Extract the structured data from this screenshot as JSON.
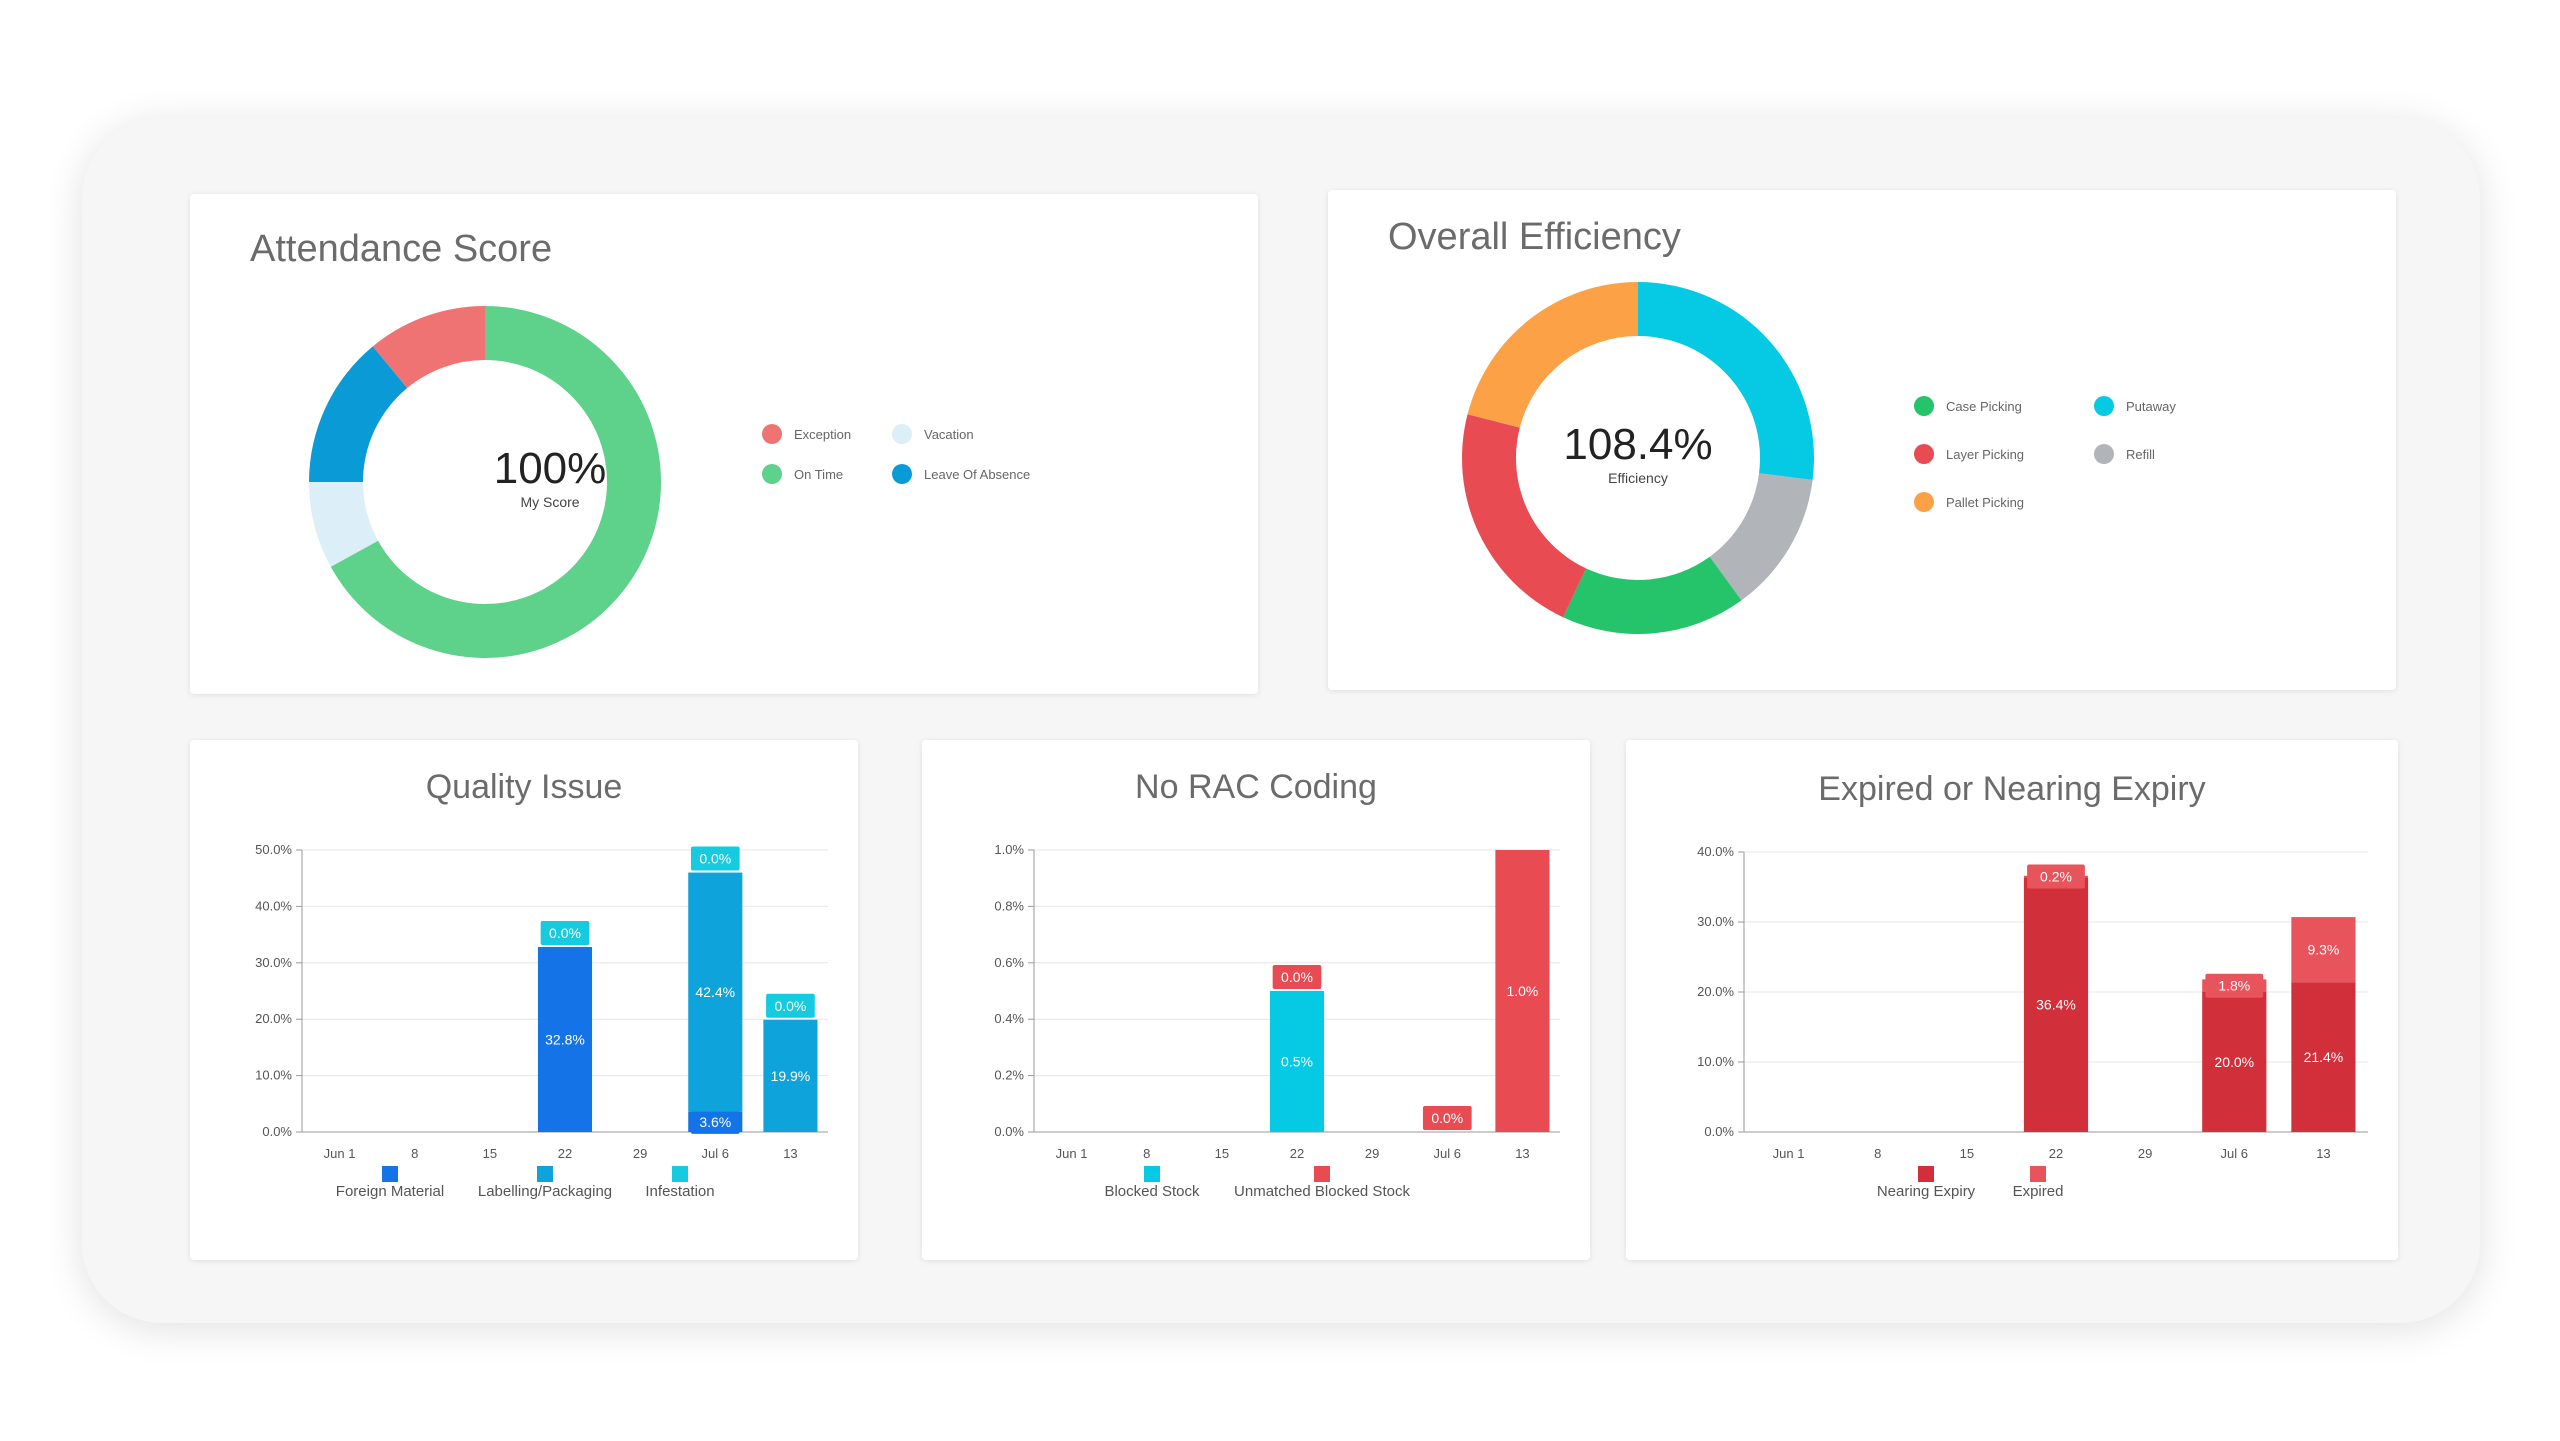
{
  "attendance": {
    "title": "Attendance Score",
    "center_value": "100%",
    "center_label": "My Score",
    "legend": [
      {
        "label": "Exception",
        "color": "#f07373"
      },
      {
        "label": "Vacation",
        "color": "#dceef7"
      },
      {
        "label": "On Time",
        "color": "#5ed18a"
      },
      {
        "label": "Leave Of Absence",
        "color": "#0a9bd7"
      }
    ]
  },
  "efficiency": {
    "title": "Overall Efficiency",
    "center_value": "108.4%",
    "center_label": "Efficiency",
    "legend": [
      {
        "label": "Case Picking",
        "color": "#25c46a"
      },
      {
        "label": "Putaway",
        "color": "#06c9e4"
      },
      {
        "label": "Layer Picking",
        "color": "#e84b52"
      },
      {
        "label": "Refill",
        "color": "#b1b4b9"
      },
      {
        "label": "Pallet Picking",
        "color": "#fca145"
      }
    ]
  },
  "chart_data": [
    {
      "type": "pie",
      "title": "Attendance Score",
      "labels": [
        "On Time",
        "Vacation",
        "Leave Of Absence",
        "Exception"
      ],
      "values": [
        67,
        8,
        14,
        11
      ],
      "colors": [
        "#5ed18a",
        "#dceef7",
        "#0a9bd7",
        "#f07373"
      ]
    },
    {
      "type": "pie",
      "title": "Overall Efficiency",
      "labels": [
        "Putaway",
        "Refill",
        "Case Picking",
        "Layer Picking",
        "Pallet Picking"
      ],
      "values": [
        27,
        13,
        17,
        22,
        21
      ],
      "colors": [
        "#06c9e4",
        "#b1b4b9",
        "#25c46a",
        "#e84b52",
        "#fca145"
      ]
    },
    {
      "type": "bar",
      "title": "Quality Issue",
      "categories": [
        "Jun 1",
        "8",
        "15",
        "22",
        "29",
        "Jul 6",
        "13"
      ],
      "ylim": [
        0,
        50
      ],
      "yticks": [
        "0.0%",
        "10.0%",
        "20.0%",
        "30.0%",
        "40.0%",
        "50.0%"
      ],
      "stacked": true,
      "series": [
        {
          "name": "Foreign Material",
          "color": "#1473e6",
          "values": [
            0,
            0,
            0,
            32.8,
            0,
            3.6,
            0
          ],
          "labels": [
            "",
            "",
            "",
            "32.8%",
            "",
            "3.6%",
            "0.0%"
          ]
        },
        {
          "name": "Labelling/Packaging",
          "color": "#0ea3da",
          "values": [
            0,
            0,
            0,
            0,
            0,
            42.4,
            19.9
          ],
          "labels": [
            "",
            "",
            "",
            "",
            "",
            "42.4%",
            "19.9%"
          ]
        },
        {
          "name": "Infestation",
          "color": "#16cbe0",
          "values": [
            0,
            0,
            0,
            0,
            0,
            0,
            0
          ],
          "labels": [
            "",
            "",
            "",
            "0.0%",
            "",
            "0.0%",
            "0.0%"
          ]
        }
      ]
    },
    {
      "type": "bar",
      "title": "No RAC Coding",
      "categories": [
        "Jun 1",
        "8",
        "15",
        "22",
        "29",
        "Jul 6",
        "13"
      ],
      "ylim": [
        0,
        1
      ],
      "yticks": [
        "0.0%",
        "0.2%",
        "0.4%",
        "0.6%",
        "0.8%",
        "1.0%"
      ],
      "stacked": true,
      "series": [
        {
          "name": "Blocked Stock",
          "color": "#06c9e4",
          "values": [
            0,
            0,
            0,
            0.5,
            0,
            0,
            0
          ],
          "labels": [
            "",
            "",
            "",
            "0.5%",
            "",
            "",
            "0.0%"
          ]
        },
        {
          "name": "Unmatched Blocked Stock",
          "color": "#e84b52",
          "values": [
            0,
            0,
            0,
            0,
            0,
            0,
            1.0
          ],
          "labels": [
            "",
            "",
            "",
            "0.0%",
            "",
            "0.0%",
            "1.0%"
          ]
        }
      ]
    },
    {
      "type": "bar",
      "title": "Expired or Nearing Expiry",
      "categories": [
        "Jun 1",
        "8",
        "15",
        "22",
        "29",
        "Jul 6",
        "13"
      ],
      "ylim": [
        0,
        40
      ],
      "yticks": [
        "0.0%",
        "10.0%",
        "20.0%",
        "30.0%",
        "40.0%"
      ],
      "stacked": true,
      "series": [
        {
          "name": "Nearing Expiry",
          "color": "#d12f3a",
          "values": [
            0,
            0,
            0,
            36.4,
            0,
            20.0,
            21.4
          ],
          "labels": [
            "",
            "",
            "",
            "36.4%",
            "",
            "20.0%",
            "21.4%"
          ]
        },
        {
          "name": "Expired",
          "color": "#e8545b",
          "values": [
            0,
            0,
            0,
            0.2,
            0,
            1.8,
            9.3
          ],
          "labels": [
            "",
            "",
            "",
            "0.2%",
            "",
            "1.8%",
            "9.3%"
          ]
        }
      ]
    }
  ]
}
